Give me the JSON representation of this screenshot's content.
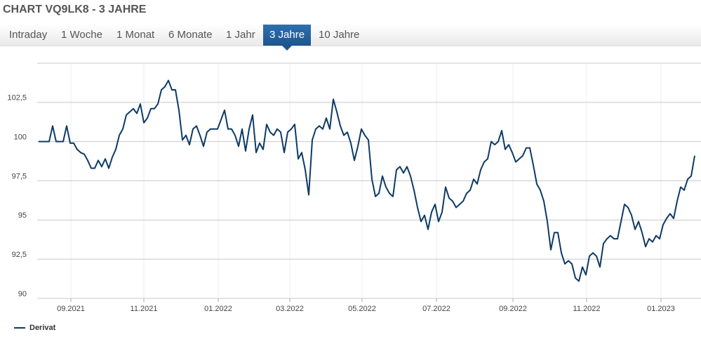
{
  "tabs": [
    "Intraday",
    "1 Woche",
    "1 Monat",
    "6 Monate",
    "1 Jahr",
    "3 Jahre",
    "10 Jahre"
  ],
  "chart_data": {
    "type": "line",
    "title": "CHART VQ9LK8 - 3 JAHRE",
    "ylim": [
      90,
      105
    ],
    "yticks": [
      90,
      {
        "value": 92.5,
        "label": "92,5"
      },
      95,
      {
        "value": 97.5,
        "label": "97,5"
      },
      100,
      {
        "value": 102.5,
        "label": "102,5"
      }
    ],
    "xlim": [
      0,
      187
    ],
    "xticks": [
      {
        "value": 9.2,
        "label": "09.2021"
      },
      {
        "value": 30,
        "label": "11.2021"
      },
      {
        "value": 51.2,
        "label": "01.2022"
      },
      {
        "value": 71.6,
        "label": "03.2022"
      },
      {
        "value": 92.2,
        "label": "05.2022"
      },
      {
        "value": 113.4,
        "label": "07.2022"
      },
      {
        "value": 135.2,
        "label": "09.2022"
      },
      {
        "value": 156.2,
        "label": "11.2022"
      },
      {
        "value": 177.4,
        "label": "01.2023"
      }
    ],
    "grid": true,
    "legend": "bottom-left",
    "series": [
      {
        "name": "Derivat",
        "color": "#0d3a66",
        "values": [
          100,
          100,
          100,
          100,
          101,
          100,
          100,
          100,
          101,
          99.9,
          99.9,
          99.5,
          99.3,
          99.2,
          98.8,
          98.3,
          98.3,
          98.8,
          98.4,
          98.9,
          98.3,
          99.0,
          99.5,
          100.4,
          100.8,
          101.7,
          101.9,
          102.1,
          101.8,
          102.4,
          101.2,
          101.5,
          102.1,
          102.1,
          102.4,
          103.3,
          103.5,
          103.9,
          103.3,
          103.3,
          102.0,
          100.1,
          100.4,
          99.8,
          100.8,
          101.0,
          100.4,
          99.7,
          100.6,
          100.8,
          100.8,
          100.8,
          101.4,
          102.0,
          100.8,
          100.8,
          100.4,
          99.7,
          100.8,
          99.4,
          100.8,
          101.7,
          99.3,
          99.9,
          99.5,
          101.1,
          100.6,
          100.4,
          100.8,
          100.6,
          99.3,
          100.6,
          100.8,
          101.1,
          98.9,
          99.3,
          98.2,
          96.6,
          100.1,
          100.8,
          101.0,
          100.8,
          101.5,
          100.8,
          102.7,
          101.9,
          101.0,
          100.4,
          100.6,
          99.9,
          98.8,
          99.7,
          100.8,
          100.4,
          100.1,
          97.6,
          96.5,
          96.7,
          97.8,
          97.1,
          96.7,
          96.5,
          98.2,
          98.4,
          98.0,
          98.4,
          97.8,
          96.9,
          95.8,
          94.9,
          95.3,
          94.4,
          95.5,
          96.0,
          94.9,
          95.5,
          97.1,
          96.4,
          96.2,
          95.8,
          96.0,
          96.2,
          96.7,
          96.9,
          97.6,
          97.3,
          98.2,
          98.7,
          98.9,
          100.0,
          99.8,
          100.0,
          100.7,
          99.5,
          99.8,
          99.3,
          98.7,
          98.9,
          99.1,
          99.6,
          99.6,
          98.5,
          97.3,
          96.9,
          96.2,
          94.9,
          93.1,
          94.2,
          94.2,
          92.9,
          92.2,
          92.4,
          92.2,
          91.3,
          91.1,
          92.0,
          91.5,
          92.7,
          92.9,
          92.7,
          92.0,
          93.5,
          93.8,
          94.0,
          93.8,
          93.8,
          94.9,
          96.0,
          95.8,
          95.3,
          94.4,
          94.9,
          94.2,
          93.3,
          93.8,
          93.6,
          94.0,
          93.8,
          94.7,
          95.1,
          95.4,
          95.1,
          96.2,
          97.1,
          96.9,
          97.6,
          97.8,
          99.1
        ]
      }
    ]
  }
}
